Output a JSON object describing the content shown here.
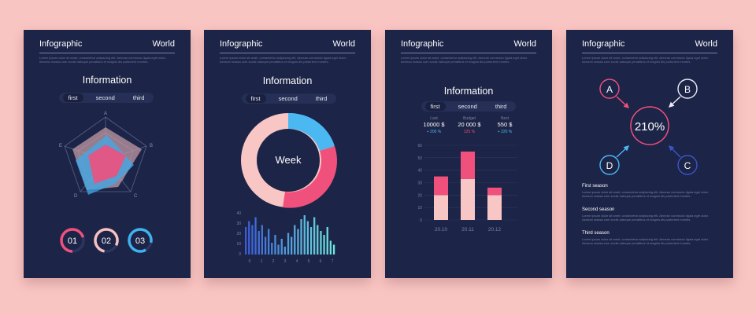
{
  "header": {
    "left": "Infographic",
    "right": "World"
  },
  "subtext": "Lorem ipsum dolor sit amet, consectetur adipiscing elit. Aenean commodo ligula eget dolor. Aenean massa cum sociis natoque penatibus et magnis dis parturient montes.",
  "card1": {
    "title": "Information",
    "tabs": [
      "first",
      "second",
      "third"
    ],
    "radar_labels": [
      "A",
      "B",
      "C",
      "D",
      "E"
    ],
    "circles": [
      {
        "label": "01",
        "color": "#f0507c"
      },
      {
        "label": "02",
        "color": "#f6c1c0"
      },
      {
        "label": "03",
        "color": "#3fb2f0"
      }
    ]
  },
  "card2": {
    "title": "Information",
    "tabs": [
      "first",
      "second",
      "third"
    ],
    "donut": {
      "center": "Week",
      "segments": [
        {
          "color": "#4cb8f2"
        },
        {
          "color": "#f0507c"
        },
        {
          "color": "#f8c6c4"
        }
      ]
    },
    "histogram": {
      "y_ticks": [
        "40",
        "30",
        "20",
        "10",
        "0"
      ],
      "x_ticks": [
        "0",
        "1",
        "2",
        "3",
        "4",
        "5",
        "6",
        "7"
      ]
    }
  },
  "card3": {
    "title": "Information",
    "tabs": [
      "first",
      "second",
      "third"
    ],
    "stats": [
      {
        "label": "Last",
        "value": "10000 $",
        "change": "+ 200 %",
        "change_color": "#4cb8f2"
      },
      {
        "label": "Budget",
        "value": "20 000 $",
        "change": "125 %",
        "change_color": "#f0507c"
      },
      {
        "label": "Next",
        "value": "550 $",
        "change": "+ 220 %",
        "change_color": "#4cb8f2"
      }
    ]
  },
  "card4": {
    "center": "210%",
    "nodes": [
      "A",
      "B",
      "C",
      "D"
    ],
    "sections": [
      {
        "title": "First season"
      },
      {
        "title": "Second season"
      },
      {
        "title": "Third season"
      }
    ]
  },
  "chart_data": [
    {
      "type": "bar",
      "categories": [
        "20.10",
        "20.11",
        "20.12"
      ],
      "series": [
        {
          "values": [
            20,
            33,
            20
          ]
        },
        {
          "values": [
            15,
            22,
            6
          ]
        }
      ],
      "stacked": true,
      "y_ticks": [
        "60",
        "50",
        "40",
        "30",
        "20",
        "10",
        "0"
      ],
      "ylim": [
        0,
        60
      ]
    }
  ]
}
